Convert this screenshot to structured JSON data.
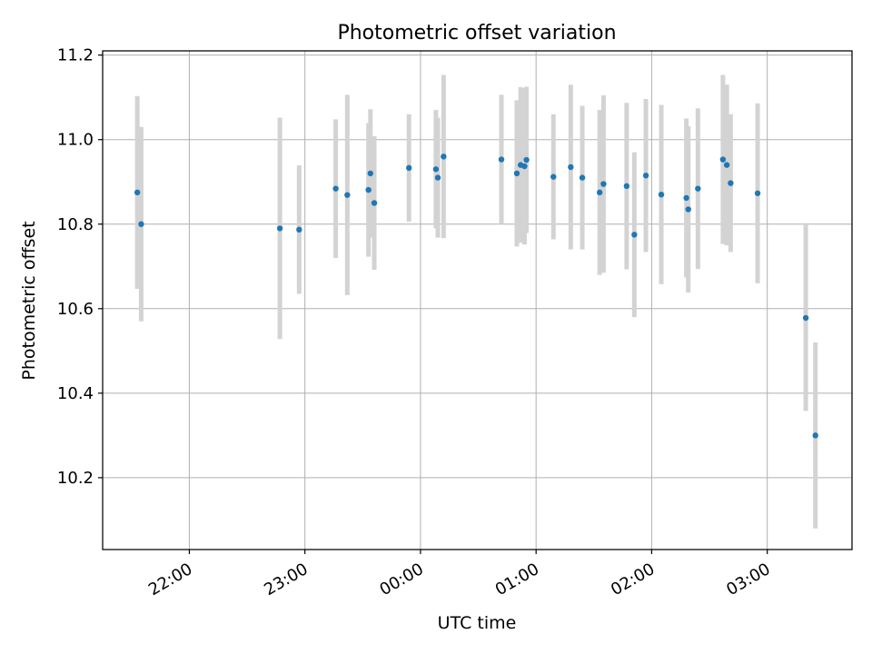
{
  "chart_data": {
    "type": "scatter",
    "title": "Photometric offset variation",
    "xlabel": "UTC time",
    "ylabel": "Photometric offset",
    "x_tick_labels": [
      "22:00",
      "23:00",
      "00:00",
      "01:00",
      "02:00",
      "03:00"
    ],
    "x_ticks": [
      "22:00",
      "23:00",
      "00:00",
      "01:00",
      "02:00",
      "03:00"
    ],
    "y_ticks": [
      10.2,
      10.4,
      10.6,
      10.8,
      11.0,
      11.2
    ],
    "y_tick_labels": [
      "10.2",
      "10.4",
      "10.6",
      "10.8",
      "11.0",
      "11.2"
    ],
    "xlim": [
      "21:15",
      "03:44"
    ],
    "ylim": [
      10.03,
      11.21
    ],
    "grid": true,
    "marker_color": "#1f77b4",
    "errorbar_color": "#d3d3d3",
    "series": [
      {
        "x": [
          "21:33",
          "21:35",
          "22:47",
          "22:57",
          "23:16",
          "23:22",
          "23:33",
          "23:34",
          "23:36",
          "23:54",
          "24:08",
          "24:09",
          "24:12",
          "24:42",
          "24:50",
          "24:52",
          "24:54",
          "24:55",
          "25:09",
          "25:18",
          "25:24",
          "25:33",
          "25:35",
          "25:47",
          "25:51",
          "25:57",
          "26:05",
          "26:18",
          "26:19",
          "26:24",
          "26:37",
          "26:39",
          "26:41",
          "26:55",
          "27:20",
          "27:25"
        ],
        "y": [
          10.875,
          10.8,
          10.79,
          10.787,
          10.884,
          10.869,
          10.881,
          10.92,
          10.85,
          10.933,
          10.93,
          10.91,
          10.96,
          10.953,
          10.92,
          10.94,
          10.937,
          10.952,
          10.912,
          10.935,
          10.91,
          10.875,
          10.895,
          10.89,
          10.775,
          10.915,
          10.87,
          10.862,
          10.835,
          10.884,
          10.953,
          10.94,
          10.897,
          10.873,
          10.578,
          10.3
        ],
        "yerr": [
          0.228,
          0.23,
          0.262,
          0.152,
          0.164,
          0.237,
          0.158,
          0.152,
          0.158,
          0.127,
          0.14,
          0.142,
          0.193,
          0.153,
          0.173,
          0.184,
          0.185,
          0.173,
          0.148,
          0.195,
          0.17,
          0.195,
          0.21,
          0.197,
          0.195,
          0.181,
          0.212,
          0.188,
          0.197,
          0.19,
          0.2,
          0.19,
          0.163,
          0.213,
          0.22,
          0.22
        ]
      }
    ]
  }
}
